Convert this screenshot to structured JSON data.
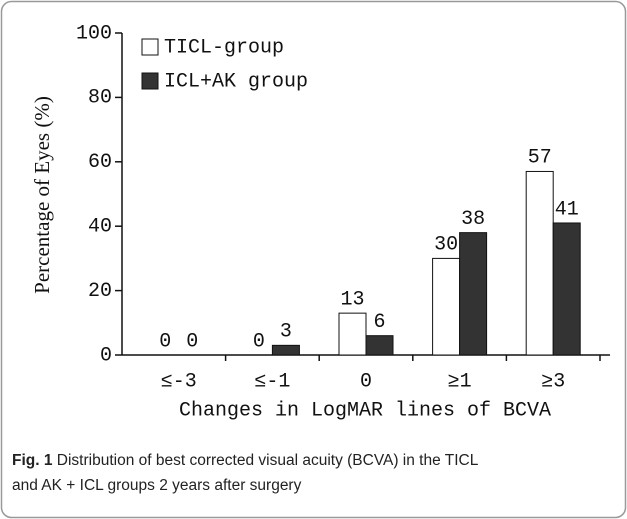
{
  "chart_data": {
    "type": "bar",
    "categories": [
      "≤-3",
      "≤-1",
      "0",
      "≥1",
      "≥3"
    ],
    "series": [
      {
        "name": "TICL-group",
        "color": "#ffffff",
        "values": [
          0,
          0,
          13,
          30,
          57
        ]
      },
      {
        "name": "ICL+AK group",
        "color": "#333333",
        "values": [
          0,
          3,
          6,
          38,
          41
        ]
      }
    ],
    "ylim": [
      0,
      100
    ],
    "yticks": [
      0,
      20,
      40,
      60,
      80,
      100
    ],
    "y_label": "Percentage of Eyes (%)",
    "x_label": "Changes in LogMAR lines of BCVA",
    "legend": "top-left"
  },
  "caption": {
    "label": "Fig. 1",
    "text": "Distribution of best corrected visual acuity (BCVA) in the TICL",
    "text2": "and AK + ICL groups 2 years after surgery"
  }
}
